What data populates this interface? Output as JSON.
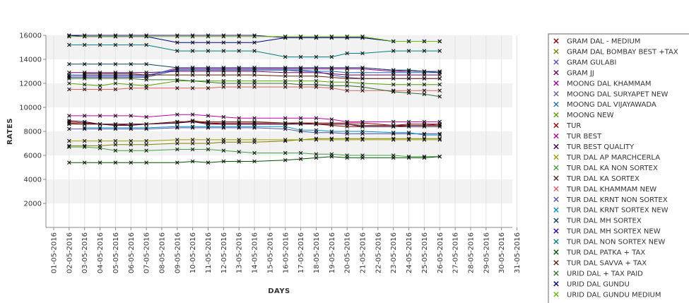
{
  "chart_data": {
    "type": "line",
    "title": "",
    "xlabel": "DAYS",
    "ylabel": "RATES",
    "x": [
      "01-05-2016",
      "02-05-2016",
      "03-05-2016",
      "04-05-2016",
      "05-05-2016",
      "06-05-2016",
      "07-05-2016",
      "08-05-2016",
      "09-05-2016",
      "10-05-2016",
      "11-05-2016",
      "12-05-2016",
      "13-05-2016",
      "14-05-2016",
      "15-05-2016",
      "16-05-2016",
      "17-05-2016",
      "18-05-2016",
      "19-05-2016",
      "20-05-2016",
      "21-05-2016",
      "22-05-2016",
      "23-05-2016",
      "24-05-2016",
      "25-05-2016",
      "26-05-2016",
      "27-05-2016",
      "28-05-2016",
      "29-05-2016",
      "30-05-2016",
      "31-05-2016"
    ],
    "yticks": [
      2000,
      4000,
      6000,
      8000,
      10000,
      12000,
      14000,
      16000
    ],
    "ylim": [
      0,
      16000
    ],
    "grid": true,
    "legend_position": "right",
    "missing_dates": [
      "01-05-2016",
      "08-05-2016",
      "15-05-2016",
      "22-05-2016",
      "27-05-2016",
      "28-05-2016",
      "29-05-2016",
      "30-05-2016",
      "31-05-2016"
    ],
    "series": [
      {
        "name": "GRAM DAL - MEDIUM",
        "color": "#8b0000",
        "values": [
          null,
          8800,
          8700,
          8600,
          8500,
          8600,
          8600,
          null,
          8800,
          8800,
          8700,
          8600,
          8600,
          8600,
          null,
          8600,
          8700,
          8600,
          8500,
          8400,
          8400,
          null,
          8400,
          8500,
          8500,
          8600,
          null,
          null,
          null,
          null,
          null
        ]
      },
      {
        "name": "GRAM DAL BOMBAY BEST +TAX",
        "color": "#808000",
        "values": [
          null,
          6800,
          6800,
          6800,
          6900,
          6900,
          6900,
          null,
          7000,
          7000,
          7000,
          7100,
          7100,
          7100,
          null,
          7200,
          7300,
          7400,
          7400,
          7400,
          7400,
          null,
          7400,
          7400,
          7400,
          7400,
          null,
          null,
          null,
          null,
          null
        ]
      },
      {
        "name": "GRAM GULABI",
        "color": "#5050c0",
        "values": [
          null,
          12500,
          12500,
          12500,
          12500,
          12500,
          12500,
          null,
          13100,
          13100,
          13100,
          13100,
          13100,
          13100,
          null,
          13100,
          13000,
          13000,
          12700,
          12500,
          12400,
          null,
          12400,
          12400,
          12400,
          12400,
          null,
          null,
          null,
          null,
          null
        ]
      },
      {
        "name": "GRAM JJ",
        "color": "#6a006a",
        "values": [
          null,
          12900,
          12900,
          12900,
          12900,
          12900,
          12900,
          null,
          13000,
          13000,
          13000,
          13000,
          13000,
          13000,
          null,
          12900,
          12900,
          12900,
          12800,
          12700,
          12700,
          null,
          12700,
          12700,
          12700,
          12700,
          null,
          null,
          null,
          null,
          null
        ]
      },
      {
        "name": "MOONG DAL KHAMMAM",
        "color": "#9a009a",
        "values": [
          null,
          null,
          12600,
          12600,
          12600,
          12600,
          12600,
          null,
          13200,
          13200,
          13200,
          13200,
          13200,
          13200,
          null,
          13200,
          13200,
          13200,
          13200,
          13200,
          13200,
          null,
          13000,
          13000,
          13000,
          12900,
          null,
          null,
          null,
          null,
          null
        ]
      },
      {
        "name": "MOONG DAL SURYAPET NEW",
        "color": "#6a5aa0",
        "values": [
          null,
          12600,
          12600,
          12600,
          12600,
          12600,
          12600,
          null,
          13300,
          13300,
          13300,
          13300,
          13300,
          13300,
          null,
          13300,
          13300,
          13300,
          13300,
          13300,
          13300,
          null,
          13100,
          13000,
          13000,
          13000,
          null,
          null,
          null,
          null,
          null
        ]
      },
      {
        "name": "MOONG DAL VIJAYAWADA",
        "color": "#1f6fb0",
        "values": [
          null,
          12700,
          12700,
          12700,
          12700,
          12700,
          12700,
          null,
          13100,
          13100,
          13100,
          13100,
          13100,
          13100,
          null,
          13100,
          13100,
          13000,
          13000,
          12900,
          12900,
          null,
          12900,
          12900,
          12900,
          12900,
          null,
          null,
          null,
          null,
          null
        ]
      },
      {
        "name": "MOONG NEW",
        "color": "#5aa000",
        "values": [
          null,
          12000,
          11900,
          11800,
          12000,
          11900,
          11800,
          null,
          12200,
          12200,
          12200,
          12200,
          12200,
          12200,
          null,
          12200,
          12200,
          12200,
          12100,
          12100,
          12000,
          null,
          11900,
          11900,
          11900,
          11900,
          null,
          null,
          null,
          null,
          null
        ]
      },
      {
        "name": "TUR",
        "color": "#a00000",
        "values": [
          null,
          8700,
          8600,
          8600,
          8600,
          8600,
          8600,
          null,
          8700,
          8900,
          8700,
          8700,
          8700,
          8700,
          null,
          8700,
          8700,
          8700,
          8700,
          8700,
          8700,
          null,
          8500,
          8600,
          8600,
          8600,
          null,
          null,
          null,
          null,
          null
        ]
      },
      {
        "name": "TUR BEST",
        "color": "#c000a0",
        "values": [
          null,
          9300,
          9300,
          9300,
          9300,
          9300,
          9200,
          null,
          9400,
          9400,
          9300,
          9200,
          9100,
          9100,
          null,
          9100,
          9100,
          9100,
          9000,
          8800,
          8800,
          null,
          8800,
          8800,
          8800,
          8800,
          null,
          null,
          null,
          null,
          null
        ]
      },
      {
        "name": "TUR BEST QUALITY",
        "color": "#400040",
        "values": [
          null,
          8900,
          8800,
          8600,
          8500,
          8500,
          8600,
          null,
          8700,
          8800,
          8600,
          8600,
          8600,
          8600,
          null,
          8600,
          8600,
          8600,
          8600,
          8600,
          8400,
          null,
          8400,
          8400,
          8400,
          8400,
          null,
          null,
          null,
          null,
          null
        ]
      },
      {
        "name": "TUR DAL AP MARCHCERLA",
        "color": "#a0a000",
        "values": [
          null,
          7200,
          7200,
          7200,
          7200,
          7200,
          7200,
          null,
          7300,
          7300,
          7300,
          7300,
          7300,
          7300,
          null,
          7300,
          7300,
          7300,
          7300,
          7300,
          7300,
          null,
          7300,
          7300,
          7300,
          7300,
          null,
          null,
          null,
          null,
          null
        ]
      },
      {
        "name": "TUR DAL KA NON SORTEX",
        "color": "#40a040",
        "values": [
          null,
          6700,
          6700,
          6600,
          6400,
          6400,
          6400,
          null,
          6500,
          6500,
          6500,
          6400,
          6300,
          6200,
          null,
          6200,
          6200,
          6100,
          6100,
          6000,
          6000,
          null,
          6000,
          5900,
          5900,
          5900,
          null,
          null,
          null,
          null,
          null
        ]
      },
      {
        "name": "TUR DAL KA SORTEX",
        "color": "#502828",
        "values": [
          null,
          8600,
          8600,
          8600,
          8600,
          8600,
          8600,
          null,
          8800,
          8800,
          8800,
          8800,
          8800,
          8800,
          null,
          8700,
          8700,
          8600,
          8600,
          8600,
          8500,
          null,
          8500,
          8500,
          8500,
          8500,
          null,
          null,
          null,
          null,
          null
        ]
      },
      {
        "name": "TUR DAL KHAMMAM NEW",
        "color": "#e06060",
        "values": [
          null,
          11500,
          11500,
          11500,
          11500,
          11600,
          11600,
          null,
          11600,
          11600,
          11600,
          11700,
          11700,
          11700,
          null,
          11700,
          11700,
          11700,
          11600,
          11400,
          11400,
          null,
          11400,
          11400,
          11400,
          11400,
          null,
          null,
          null,
          null,
          null
        ]
      },
      {
        "name": "TUR DAL KRNT NON SORTEX",
        "color": "#5050b0",
        "values": [
          null,
          8200,
          8200,
          8200,
          8200,
          8200,
          8200,
          null,
          8300,
          8300,
          8300,
          8300,
          8300,
          8300,
          null,
          8200,
          8000,
          7900,
          7900,
          7800,
          7800,
          null,
          7800,
          7800,
          7800,
          7800,
          null,
          null,
          null,
          null,
          null
        ]
      },
      {
        "name": "TUR DAL KRNT SORTEX NEW",
        "color": "#0090c0",
        "values": [
          null,
          null,
          8300,
          8300,
          8300,
          8300,
          8300,
          null,
          8400,
          8400,
          8400,
          8400,
          8400,
          8400,
          null,
          8400,
          8100,
          8100,
          8000,
          8000,
          8000,
          null,
          7900,
          7900,
          7700,
          7700,
          null,
          null,
          null,
          null,
          null
        ]
      },
      {
        "name": "TUR DAL MH SORTEX",
        "color": "#104060",
        "values": [
          null,
          13600,
          13600,
          13600,
          13600,
          13600,
          13600,
          null,
          13300,
          13300,
          13300,
          13300,
          13300,
          13300,
          null,
          13300,
          13300,
          13300,
          13300,
          13300,
          13300,
          null,
          13100,
          13100,
          13000,
          12900,
          null,
          null,
          null,
          null,
          null
        ]
      },
      {
        "name": "TUR DAL MH SORTEX NEW",
        "color": "#3000b0",
        "values": [
          null,
          16000,
          16000,
          16000,
          16000,
          16000,
          16000,
          null,
          16000,
          16000,
          16000,
          16000,
          16000,
          16000,
          null,
          15800,
          15800,
          15800,
          15800,
          15800,
          15800,
          null,
          15500,
          15500,
          15500,
          15500,
          null,
          null,
          null,
          null,
          null
        ]
      },
      {
        "name": "TUR DAL NON SORTEX NEW",
        "color": "#008080",
        "values": [
          null,
          15200,
          15200,
          15200,
          15200,
          15200,
          15200,
          null,
          14700,
          14700,
          14700,
          14700,
          14700,
          14700,
          null,
          14200,
          14200,
          14200,
          14200,
          14500,
          14500,
          null,
          14700,
          14700,
          14700,
          14700,
          null,
          null,
          null,
          null,
          null
        ]
      },
      {
        "name": "TUR DAL PATKA + TAX",
        "color": "#005000",
        "values": [
          null,
          5400,
          5400,
          5400,
          5400,
          5400,
          5400,
          null,
          5400,
          5500,
          5400,
          5500,
          5500,
          5500,
          null,
          5600,
          5700,
          5800,
          5900,
          5800,
          5800,
          null,
          5800,
          5800,
          5800,
          5900,
          null,
          null,
          null,
          null,
          null
        ]
      },
      {
        "name": "TUR DAL SAVVA + TAX",
        "color": "#602000",
        "values": [
          null,
          null,
          12800,
          12800,
          12800,
          12800,
          12700,
          null,
          12700,
          12700,
          12700,
          12700,
          12700,
          12700,
          null,
          12600,
          12600,
          12600,
          12500,
          12400,
          12400,
          null,
          12400,
          12400,
          12400,
          12400,
          null,
          null,
          null,
          null,
          null
        ]
      },
      {
        "name": "URID DAL + TAX PAID",
        "color": "#307030",
        "values": [
          null,
          12400,
          12400,
          12400,
          12400,
          12400,
          12300,
          null,
          12300,
          12200,
          12100,
          12000,
          12000,
          12000,
          null,
          12000,
          11900,
          11900,
          11800,
          11800,
          11700,
          null,
          11300,
          11200,
          11100,
          10900,
          null,
          null,
          null,
          null,
          null
        ]
      },
      {
        "name": "URID DAL GUNDU",
        "color": "#000080",
        "values": [
          null,
          16000,
          15900,
          15900,
          15900,
          15900,
          15900,
          null,
          15400,
          15400,
          15400,
          15400,
          15400,
          15400,
          null,
          15800,
          15800,
          15800,
          15800,
          15800,
          15800,
          null,
          15500,
          15500,
          15500,
          15500,
          null,
          null,
          null,
          null,
          null
        ]
      },
      {
        "name": "URID DAL GUNDU MEDIUM",
        "color": "#60c000",
        "values": [
          null,
          15900,
          15900,
          15900,
          15900,
          15900,
          15900,
          null,
          15900,
          15900,
          15900,
          15900,
          15900,
          15900,
          null,
          15900,
          15900,
          15900,
          15900,
          15900,
          15900,
          null,
          15500,
          15500,
          15500,
          15500,
          null,
          null,
          null,
          null,
          null
        ]
      }
    ]
  }
}
